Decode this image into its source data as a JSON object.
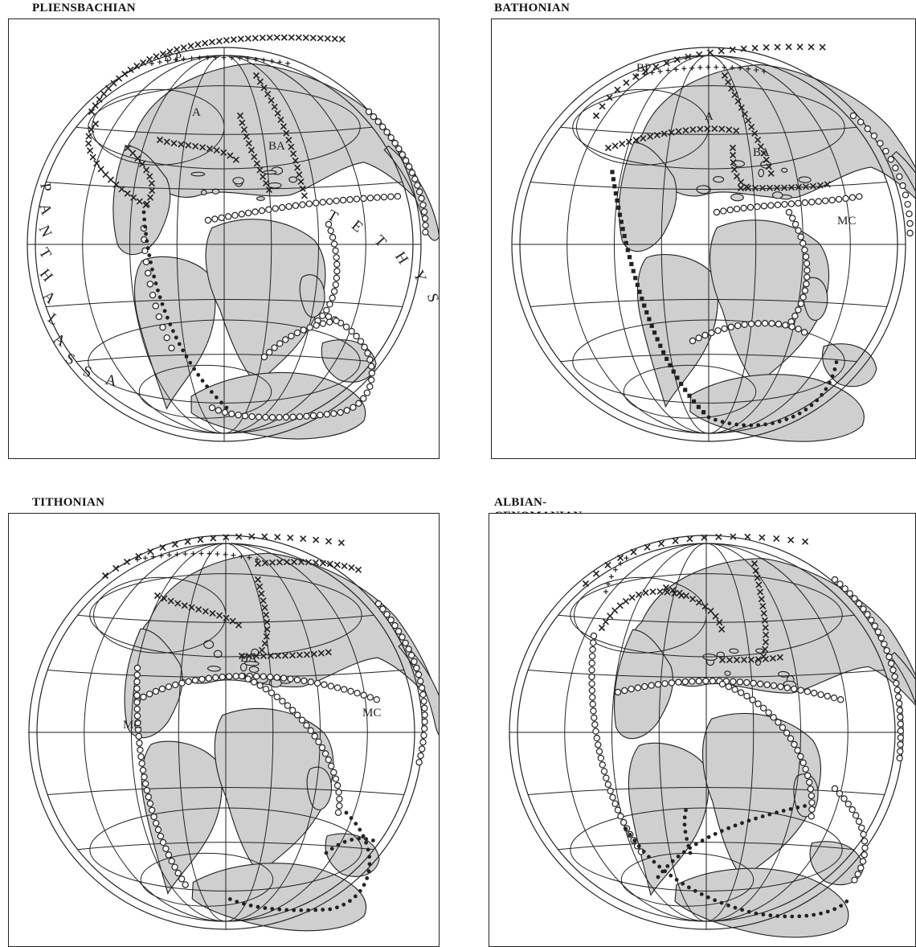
{
  "figure": {
    "panels": [
      {
        "id": "pliensbachian",
        "title": "PLIENSBACHIAN",
        "labels": [
          "B P",
          "A",
          "BA"
        ],
        "oceans": [
          {
            "name": "PANTHALASSA",
            "letters": [
              "P",
              "A",
              "N",
              "T",
              "H",
              "A",
              "L",
              "A",
              "S",
              "S",
              "A"
            ]
          },
          {
            "name": "TETHYS",
            "letters": [
              "T",
              "E",
              "T",
              "H",
              "Y",
              "S"
            ]
          }
        ]
      },
      {
        "id": "bathonian",
        "title": "BATHONIAN",
        "labels": [
          "BP",
          "A",
          "BA",
          "MC"
        ],
        "oceans": []
      },
      {
        "id": "tithonian",
        "title": "TITHONIAN",
        "labels": [
          "BA",
          "MC",
          "MC"
        ],
        "oceans": []
      },
      {
        "id": "albian-cenomanian",
        "title": "ALBIAN-CENOMANIAN",
        "labels": [],
        "oceans": []
      }
    ],
    "colors": {
      "land": "#cfcfcf",
      "line": "#222222",
      "background": "#ffffff"
    },
    "boundary_symbols": [
      "x",
      "o",
      "+",
      "dot",
      "square"
    ]
  }
}
